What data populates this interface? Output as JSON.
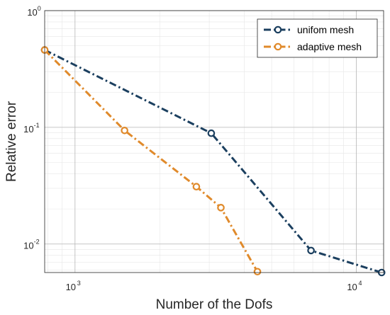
{
  "chart_data": {
    "type": "line",
    "title": "",
    "xlabel": "Number of the  Dofs",
    "ylabel": "Relative error",
    "x_scale": "log",
    "y_scale": "log",
    "xlim": [
      780,
      12500
    ],
    "ylim": [
      0.0057,
      1
    ],
    "grid": true,
    "legend_position": "top-right",
    "x_ticks": [
      {
        "value": 1000,
        "base": "10",
        "exp": "3"
      },
      {
        "value": 10000,
        "base": "10",
        "exp": "4"
      }
    ],
    "y_ticks": [
      {
        "value": 1,
        "base": "10",
        "exp": "0"
      },
      {
        "value": 0.1,
        "base": "10",
        "exp": "-1"
      },
      {
        "value": 0.01,
        "base": "10",
        "exp": "-2"
      }
    ],
    "series": [
      {
        "name": "unifom mesh",
        "color": "#1b3f5f",
        "x": [
          780,
          3050,
          6900,
          12300
        ],
        "y": [
          0.46,
          0.089,
          0.0088,
          0.0057
        ]
      },
      {
        "name": "adaptive mesh",
        "color": "#e08a2b",
        "x": [
          780,
          1500,
          2700,
          3300,
          4450
        ],
        "y": [
          0.46,
          0.094,
          0.031,
          0.0205,
          0.0058
        ]
      }
    ]
  }
}
